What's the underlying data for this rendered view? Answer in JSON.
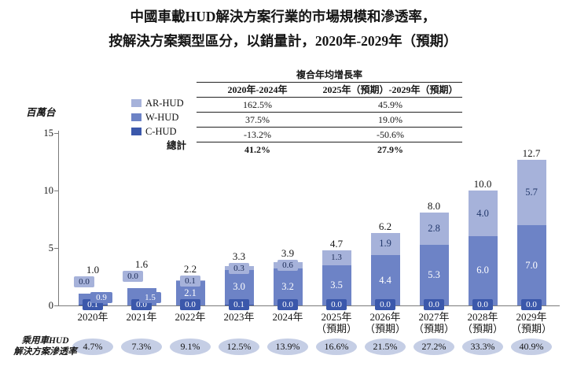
{
  "title": {
    "line1": "中國車載HUD解決方案行業的市場規模和滲透率，",
    "line2": "按解決方案類型區分，以銷量計，2020年-2029年（預期）"
  },
  "colors": {
    "ar_hud": "#a6b2da",
    "w_hud": "#6d83c6",
    "c_hud": "#3b58ab",
    "axis": "#7a7a7a",
    "ellipse_bg": "#c5cee5"
  },
  "cagr_table": {
    "header": "複合年均增長率",
    "columns": [
      "2020年-2024年",
      "2025年（預期）-2029年（預期）"
    ],
    "rows": [
      {
        "label": "AR-HUD",
        "values": [
          "162.5%",
          "45.9%"
        ]
      },
      {
        "label": "W-HUD",
        "values": [
          "37.5%",
          "19.0%"
        ]
      },
      {
        "label": "C-HUD",
        "values": [
          "-13.2%",
          "-50.6%"
        ]
      },
      {
        "label": "總計",
        "values": [
          "41.2%",
          "27.9%"
        ]
      }
    ]
  },
  "legend": {
    "items": [
      {
        "label": "AR-HUD",
        "color": "#a6b2da"
      },
      {
        "label": "W-HUD",
        "color": "#6d83c6"
      },
      {
        "label": "C-HUD",
        "color": "#3b58ab"
      }
    ],
    "total_label": "總計"
  },
  "y_axis": {
    "unit_label": "百萬台",
    "ticks": [
      0,
      5,
      10,
      15
    ]
  },
  "chart_data": {
    "type": "bar",
    "stacked": true,
    "title": "中國車載HUD解決方案行業的市場規模和滲透率，按解決方案類型區分，以銷量計，2020年-2029年（預期）",
    "categories": [
      [
        "2020年"
      ],
      [
        "2021年"
      ],
      [
        "2022年"
      ],
      [
        "2023年"
      ],
      [
        "2024年"
      ],
      [
        "2025年",
        "（預期）"
      ],
      [
        "2026年",
        "（預期）"
      ],
      [
        "2027年",
        "（預期）"
      ],
      [
        "2028年",
        "（預期）"
      ],
      [
        "2029年",
        "（預期）"
      ]
    ],
    "series": [
      {
        "name": "C-HUD",
        "color": "#3b58ab",
        "values": [
          0.1,
          0.0,
          0.0,
          0.1,
          0.0,
          0.0,
          0.0,
          0.0,
          0.0,
          0.0
        ]
      },
      {
        "name": "W-HUD",
        "color": "#6d83c6",
        "values": [
          0.9,
          1.5,
          2.1,
          3.0,
          3.2,
          3.5,
          4.4,
          5.3,
          6.0,
          7.0
        ]
      },
      {
        "name": "AR-HUD",
        "color": "#a6b2da",
        "values": [
          0.0,
          0.0,
          0.1,
          0.3,
          0.6,
          1.3,
          1.9,
          2.8,
          4.0,
          5.7
        ]
      }
    ],
    "totals": [
      1.0,
      1.6,
      2.2,
      3.3,
      3.9,
      4.7,
      6.2,
      8.0,
      10.0,
      12.7
    ],
    "ylabel": "百萬台",
    "ylim": [
      0,
      15
    ],
    "grid": false,
    "legend_position": "top-left"
  },
  "penetration": {
    "label_line1": "乘用車HUD",
    "label_line2": "解決方案滲透率",
    "values": [
      "4.7%",
      "7.3%",
      "9.1%",
      "12.5%",
      "13.9%",
      "16.6%",
      "21.5%",
      "27.2%",
      "33.3%",
      "40.9%"
    ]
  }
}
